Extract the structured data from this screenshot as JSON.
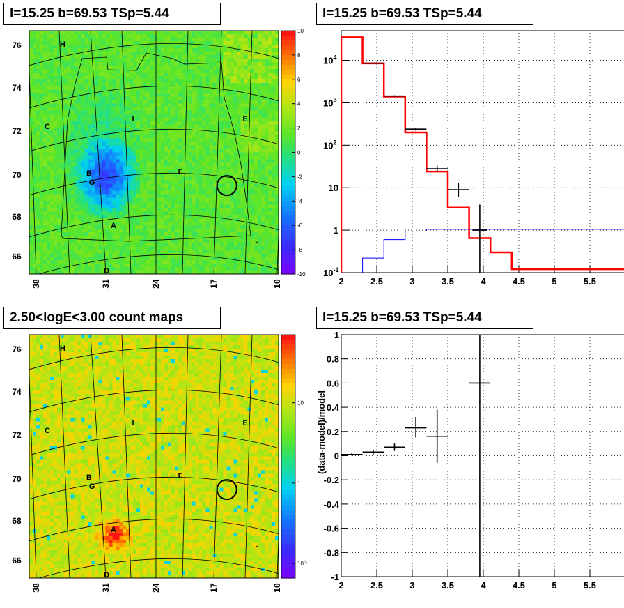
{
  "panels": {
    "top_left_title": "l=15.25 b=69.53 TSp=5.44",
    "top_right_title": "l=15.25 b=69.53 TSp=5.44",
    "bottom_left_title": "2.50<logE<3.00 count maps",
    "bottom_right_title": "l=15.25 b=69.53 TSp=5.44"
  },
  "maps": {
    "y_ticks": [
      "76",
      "74",
      "72",
      "70",
      "68",
      "66"
    ],
    "x_ticks": [
      "38",
      "31",
      "24",
      "17",
      "10"
    ],
    "region_labels": [
      "H",
      "I",
      "C",
      "E",
      "B",
      "G",
      "F",
      "A",
      "D"
    ],
    "top_colorbar_ticks": [
      "10",
      "8",
      "6",
      "4",
      "2",
      "0",
      "-2",
      "-4",
      "-6",
      "-8",
      "-10"
    ],
    "bottom_colorbar_ticks": [
      "10",
      "1",
      "10-1"
    ]
  },
  "chart_data": [
    {
      "type": "heatmap",
      "title": "l=15.25 b=69.53 TSp=5.44",
      "xlabel": "",
      "ylabel": "",
      "xlim": [
        38,
        10
      ],
      "ylim": [
        65.5,
        77
      ],
      "x_ticks": [
        38,
        31,
        24,
        17,
        10
      ],
      "y_ticks": [
        76,
        74,
        72,
        70,
        68,
        66
      ],
      "colorbar_range": [
        -10,
        10
      ],
      "colorbar_ticks": [
        10,
        8,
        6,
        4,
        2,
        0,
        -2,
        -4,
        -6,
        -8,
        -10
      ],
      "circle_marker": {
        "x": 15.25,
        "y": 69.53
      },
      "region_labels": [
        "H",
        "I",
        "C",
        "E",
        "B",
        "G",
        "F",
        "A",
        "D"
      ]
    },
    {
      "type": "line",
      "title": "l=15.25 b=69.53 TSp=5.44",
      "xlabel": "",
      "ylabel": "",
      "xlim": [
        2,
        6
      ],
      "ylim": [
        0.1,
        50000
      ],
      "yscale": "log",
      "x_ticks": [
        2,
        2.5,
        3,
        3.5,
        4,
        4.5,
        5,
        5.5
      ],
      "y_ticks": [
        "10^-1",
        "1",
        "10",
        "10^2",
        "10^3",
        "10^4"
      ],
      "grid": true,
      "series": [
        {
          "color": "#ff0000",
          "style": "step",
          "bin_edges": [
            2,
            2.3,
            2.6,
            2.9,
            3.2,
            3.5,
            3.8,
            4.1,
            4.4,
            6
          ],
          "values": [
            35000,
            8500,
            1400,
            200,
            24,
            3.4,
            0.65,
            0.3,
            0.12
          ]
        },
        {
          "color": "#0000ff",
          "style": "step",
          "bin_edges": [
            2.3,
            2.6,
            2.9,
            3.2,
            3.5,
            6
          ],
          "values": [
            0.22,
            0.6,
            0.95,
            1.05,
            1.05
          ]
        },
        {
          "color": "#000000",
          "style": "errorbars",
          "points": [
            {
              "x": 2.45,
              "y": 8600,
              "xerr": 0.15,
              "ylo": 8500,
              "yhi": 8700
            },
            {
              "x": 2.75,
              "y": 1450,
              "xerr": 0.15,
              "ylo": 1400,
              "yhi": 1500
            },
            {
              "x": 3.05,
              "y": 240,
              "xerr": 0.15,
              "ylo": 220,
              "yhi": 260
            },
            {
              "x": 3.35,
              "y": 28,
              "xerr": 0.15,
              "ylo": 23,
              "yhi": 33
            },
            {
              "x": 3.65,
              "y": 9,
              "xerr": 0.15,
              "ylo": 6,
              "yhi": 13
            },
            {
              "x": 3.95,
              "y": 1,
              "xerr": 0.1,
              "ylo": 0.1,
              "yhi": 4
            }
          ]
        }
      ]
    },
    {
      "type": "heatmap",
      "title": "2.50<logE<3.00 count maps",
      "xlabel": "",
      "ylabel": "",
      "xlim": [
        38,
        10
      ],
      "ylim": [
        65.5,
        77
      ],
      "x_ticks": [
        38,
        31,
        24,
        17,
        10
      ],
      "y_ticks": [
        76,
        74,
        72,
        70,
        68,
        66
      ],
      "colorbar_scale": "log",
      "colorbar_ticks": [
        "10",
        "1",
        "10-1"
      ],
      "circle_marker": {
        "x": 15.25,
        "y": 69.53
      },
      "region_labels": [
        "H",
        "I",
        "C",
        "E",
        "B",
        "G",
        "F",
        "A",
        "D"
      ]
    },
    {
      "type": "scatter",
      "title": "l=15.25 b=69.53 TSp=5.44",
      "xlabel": "",
      "ylabel": "(data-model)/model",
      "xlim": [
        2,
        6
      ],
      "ylim": [
        -1,
        1
      ],
      "x_ticks": [
        2,
        2.5,
        3,
        3.5,
        4,
        4.5,
        5,
        5.5
      ],
      "y_ticks": [
        1,
        0.8,
        0.6,
        0.4,
        0.2,
        0,
        -0.2,
        -0.4,
        -0.6,
        -0.8,
        -1
      ],
      "grid": true,
      "points": [
        {
          "x": 2.15,
          "y": 0.01,
          "xerr": 0.15,
          "ylo": 0.0,
          "yhi": 0.02
        },
        {
          "x": 2.45,
          "y": 0.03,
          "xerr": 0.15,
          "ylo": 0.01,
          "yhi": 0.05
        },
        {
          "x": 2.75,
          "y": 0.07,
          "xerr": 0.15,
          "ylo": 0.04,
          "yhi": 0.1
        },
        {
          "x": 3.05,
          "y": 0.23,
          "xerr": 0.15,
          "ylo": 0.15,
          "yhi": 0.32
        },
        {
          "x": 3.35,
          "y": 0.16,
          "xerr": 0.15,
          "ylo": -0.06,
          "yhi": 0.38
        },
        {
          "x": 3.95,
          "y": 0.6,
          "xerr": 0.15,
          "ylo": -1,
          "yhi": 1
        }
      ]
    }
  ]
}
